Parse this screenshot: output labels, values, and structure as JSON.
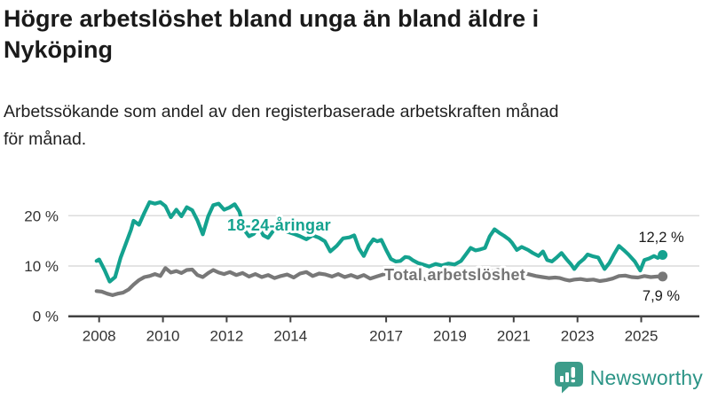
{
  "header": {
    "title_line1": "Högre arbetslöshet bland unga än bland äldre i",
    "title_line2": "Nyköping",
    "subtitle_line1": "Arbetssökande som andel av den registerbaserade arbetskraften månad",
    "subtitle_line2": "för månad."
  },
  "chart_data": {
    "type": "line",
    "title": "Högre arbetslöshet bland unga än bland äldre i Nyköping",
    "subtitle": "Arbetssökande som andel av den registerbaserade arbetskraften månad för månad.",
    "xlabel": "",
    "ylabel": "",
    "xlim": [
      2007.8,
      2025.95
    ],
    "ylim": [
      0,
      24
    ],
    "grid": "horizontal",
    "legend_position": "inline-labels",
    "yticks": [
      {
        "value": 20,
        "label": "20 %"
      },
      {
        "value": 10,
        "label": "10 %"
      },
      {
        "value": 0,
        "label": "0 %"
      }
    ],
    "xticks": [
      {
        "value": 2008,
        "label": "2008"
      },
      {
        "value": 2010,
        "label": "2010"
      },
      {
        "value": 2012,
        "label": "2012"
      },
      {
        "value": 2014,
        "label": "2014"
      },
      {
        "value": 2017,
        "label": "2017"
      },
      {
        "value": 2019,
        "label": "2019"
      },
      {
        "value": 2021,
        "label": "2021"
      },
      {
        "value": 2023,
        "label": "2023"
      },
      {
        "value": 2025,
        "label": "2025"
      }
    ],
    "series": [
      {
        "name": "18-24-åringar",
        "color": "#14a28f",
        "end_label": "12,2 %",
        "end_value": 12.2,
        "points": [
          [
            2007.92,
            11.0
          ],
          [
            2008.0,
            11.3
          ],
          [
            2008.17,
            9.2
          ],
          [
            2008.33,
            6.9
          ],
          [
            2008.5,
            7.8
          ],
          [
            2008.67,
            11.6
          ],
          [
            2008.83,
            14.3
          ],
          [
            2009.0,
            17.2
          ],
          [
            2009.08,
            19.0
          ],
          [
            2009.25,
            18.2
          ],
          [
            2009.42,
            20.6
          ],
          [
            2009.58,
            22.7
          ],
          [
            2009.75,
            22.4
          ],
          [
            2009.92,
            22.7
          ],
          [
            2010.08,
            21.9
          ],
          [
            2010.25,
            19.7
          ],
          [
            2010.42,
            21.2
          ],
          [
            2010.58,
            19.9
          ],
          [
            2010.75,
            21.7
          ],
          [
            2010.92,
            21.1
          ],
          [
            2011.08,
            19.1
          ],
          [
            2011.25,
            16.3
          ],
          [
            2011.42,
            19.9
          ],
          [
            2011.58,
            22.1
          ],
          [
            2011.75,
            22.4
          ],
          [
            2011.92,
            21.2
          ],
          [
            2012.08,
            21.6
          ],
          [
            2012.25,
            22.3
          ],
          [
            2012.4,
            20.8
          ],
          [
            2012.55,
            17.2
          ],
          [
            2012.7,
            15.9
          ],
          [
            2012.85,
            16.4
          ],
          [
            2013.0,
            17.9
          ],
          [
            2013.15,
            16.1
          ],
          [
            2013.3,
            15.6
          ],
          [
            2013.45,
            16.9
          ],
          [
            2013.6,
            18.3
          ],
          [
            2013.75,
            17.7
          ],
          [
            2013.9,
            16.8
          ],
          [
            2014.1,
            16.4
          ],
          [
            2014.3,
            15.9
          ],
          [
            2014.5,
            15.3
          ],
          [
            2014.7,
            16.1
          ],
          [
            2014.9,
            15.6
          ],
          [
            2015.08,
            14.9
          ],
          [
            2015.25,
            12.9
          ],
          [
            2015.45,
            14.0
          ],
          [
            2015.65,
            15.5
          ],
          [
            2015.85,
            15.7
          ],
          [
            2016.0,
            16.1
          ],
          [
            2016.15,
            13.5
          ],
          [
            2016.3,
            12.0
          ],
          [
            2016.45,
            14.0
          ],
          [
            2016.6,
            15.3
          ],
          [
            2016.72,
            14.9
          ],
          [
            2016.85,
            15.2
          ],
          [
            2017.0,
            13.2
          ],
          [
            2017.15,
            11.4
          ],
          [
            2017.3,
            10.9
          ],
          [
            2017.45,
            11.0
          ],
          [
            2017.6,
            11.8
          ],
          [
            2017.72,
            11.7
          ],
          [
            2017.85,
            11.1
          ],
          [
            2018.0,
            10.6
          ],
          [
            2018.15,
            10.3
          ],
          [
            2018.35,
            9.9
          ],
          [
            2018.55,
            10.4
          ],
          [
            2018.75,
            10.1
          ],
          [
            2018.95,
            10.5
          ],
          [
            2019.15,
            10.3
          ],
          [
            2019.35,
            11.0
          ],
          [
            2019.5,
            12.3
          ],
          [
            2019.65,
            13.6
          ],
          [
            2019.8,
            13.1
          ],
          [
            2019.95,
            13.3
          ],
          [
            2020.1,
            13.6
          ],
          [
            2020.25,
            15.9
          ],
          [
            2020.4,
            17.3
          ],
          [
            2020.55,
            16.6
          ],
          [
            2020.7,
            16.0
          ],
          [
            2020.85,
            15.3
          ],
          [
            2020.95,
            14.6
          ],
          [
            2021.1,
            13.2
          ],
          [
            2021.25,
            13.8
          ],
          [
            2021.45,
            13.2
          ],
          [
            2021.6,
            12.6
          ],
          [
            2021.78,
            12.0
          ],
          [
            2021.92,
            12.9
          ],
          [
            2022.05,
            11.2
          ],
          [
            2022.2,
            10.9
          ],
          [
            2022.35,
            11.7
          ],
          [
            2022.5,
            12.6
          ],
          [
            2022.65,
            11.4
          ],
          [
            2022.8,
            10.3
          ],
          [
            2022.9,
            9.4
          ],
          [
            2023.05,
            10.6
          ],
          [
            2023.2,
            11.4
          ],
          [
            2023.32,
            12.3
          ],
          [
            2023.5,
            11.9
          ],
          [
            2023.65,
            11.7
          ],
          [
            2023.85,
            9.4
          ],
          [
            2024.0,
            10.6
          ],
          [
            2024.15,
            12.4
          ],
          [
            2024.3,
            14.0
          ],
          [
            2024.45,
            13.2
          ],
          [
            2024.6,
            12.3
          ],
          [
            2024.8,
            10.9
          ],
          [
            2024.97,
            9.1
          ],
          [
            2025.1,
            11.2
          ],
          [
            2025.25,
            11.5
          ],
          [
            2025.4,
            12.0
          ],
          [
            2025.52,
            11.6
          ],
          [
            2025.67,
            12.2
          ]
        ]
      },
      {
        "name": "Total arbetslöshet",
        "color": "#787878",
        "end_label": "7,9 %",
        "end_value": 7.9,
        "points": [
          [
            2007.92,
            5.0
          ],
          [
            2008.08,
            4.9
          ],
          [
            2008.25,
            4.5
          ],
          [
            2008.42,
            4.2
          ],
          [
            2008.58,
            4.5
          ],
          [
            2008.75,
            4.7
          ],
          [
            2008.92,
            5.3
          ],
          [
            2009.08,
            6.3
          ],
          [
            2009.25,
            7.2
          ],
          [
            2009.42,
            7.8
          ],
          [
            2009.58,
            8.0
          ],
          [
            2009.75,
            8.4
          ],
          [
            2009.92,
            8.0
          ],
          [
            2010.08,
            9.6
          ],
          [
            2010.25,
            8.7
          ],
          [
            2010.42,
            9.0
          ],
          [
            2010.58,
            8.6
          ],
          [
            2010.75,
            9.2
          ],
          [
            2010.92,
            9.3
          ],
          [
            2011.08,
            8.2
          ],
          [
            2011.25,
            7.8
          ],
          [
            2011.42,
            8.6
          ],
          [
            2011.58,
            9.2
          ],
          [
            2011.75,
            8.7
          ],
          [
            2011.92,
            8.4
          ],
          [
            2012.1,
            8.8
          ],
          [
            2012.3,
            8.2
          ],
          [
            2012.5,
            8.6
          ],
          [
            2012.7,
            7.9
          ],
          [
            2012.9,
            8.4
          ],
          [
            2013.1,
            7.8
          ],
          [
            2013.3,
            8.2
          ],
          [
            2013.5,
            7.6
          ],
          [
            2013.7,
            8.0
          ],
          [
            2013.9,
            8.3
          ],
          [
            2014.1,
            7.7
          ],
          [
            2014.3,
            8.5
          ],
          [
            2014.5,
            8.8
          ],
          [
            2014.7,
            8.0
          ],
          [
            2014.9,
            8.5
          ],
          [
            2015.1,
            8.3
          ],
          [
            2015.3,
            7.9
          ],
          [
            2015.5,
            8.4
          ],
          [
            2015.7,
            7.8
          ],
          [
            2015.9,
            8.2
          ],
          [
            2016.1,
            7.7
          ],
          [
            2016.3,
            8.2
          ],
          [
            2016.5,
            7.5
          ],
          [
            2016.7,
            7.9
          ],
          [
            2016.9,
            8.3
          ],
          [
            2017.1,
            8.6
          ],
          [
            2017.3,
            8.8
          ],
          [
            2017.5,
            8.4
          ],
          [
            2017.7,
            8.0
          ],
          [
            2017.9,
            7.7
          ],
          [
            2018.1,
            7.5
          ],
          [
            2018.3,
            7.3
          ],
          [
            2018.5,
            7.4
          ],
          [
            2018.7,
            7.6
          ],
          [
            2018.9,
            7.5
          ],
          [
            2019.1,
            7.4
          ],
          [
            2019.3,
            7.6
          ],
          [
            2019.5,
            7.8
          ],
          [
            2019.7,
            7.7
          ],
          [
            2019.9,
            7.9
          ],
          [
            2020.1,
            8.3
          ],
          [
            2020.3,
            8.9
          ],
          [
            2020.5,
            9.2
          ],
          [
            2020.7,
            9.0
          ],
          [
            2020.9,
            8.8
          ],
          [
            2021.1,
            8.9
          ],
          [
            2021.3,
            8.6
          ],
          [
            2021.5,
            8.3
          ],
          [
            2021.7,
            8.0
          ],
          [
            2021.9,
            7.8
          ],
          [
            2022.1,
            7.6
          ],
          [
            2022.3,
            7.7
          ],
          [
            2022.45,
            7.6
          ],
          [
            2022.6,
            7.3
          ],
          [
            2022.75,
            7.1
          ],
          [
            2022.9,
            7.3
          ],
          [
            2023.1,
            7.4
          ],
          [
            2023.3,
            7.2
          ],
          [
            2023.5,
            7.3
          ],
          [
            2023.7,
            7.0
          ],
          [
            2023.9,
            7.2
          ],
          [
            2024.1,
            7.5
          ],
          [
            2024.3,
            8.0
          ],
          [
            2024.5,
            8.1
          ],
          [
            2024.7,
            7.8
          ],
          [
            2024.9,
            7.7
          ],
          [
            2025.1,
            8.0
          ],
          [
            2025.3,
            7.8
          ],
          [
            2025.5,
            7.9
          ],
          [
            2025.67,
            7.9
          ]
        ]
      }
    ]
  },
  "branding": {
    "name": "Newsworthy",
    "icon": "bar-chart-speech-bubble-icon",
    "accent_color": "#3c9c8a"
  }
}
